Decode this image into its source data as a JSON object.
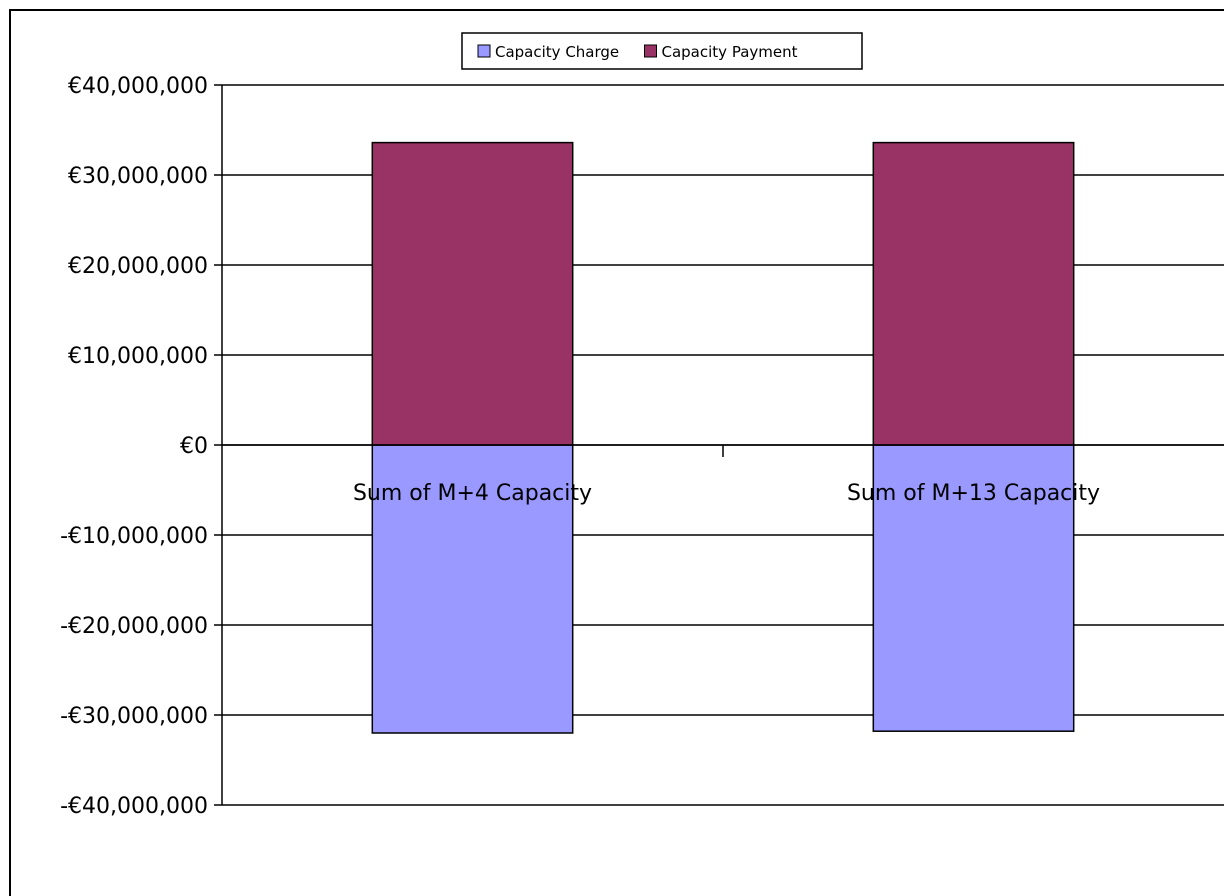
{
  "chart_data": {
    "type": "bar",
    "stacked": true,
    "categories": [
      "Sum of M+4 Capacity",
      "Sum of M+13 Capacity"
    ],
    "series": [
      {
        "name": "Capacity Charge",
        "color": "#9999ff",
        "values": [
          -32000000,
          -31800000
        ]
      },
      {
        "name": "Capacity Payment",
        "color": "#993366",
        "values": [
          33600000,
          33600000
        ]
      }
    ],
    "ylim": [
      -40000000,
      40000000
    ],
    "yticks": [
      {
        "value": 40000000,
        "label": "€40,000,000"
      },
      {
        "value": 30000000,
        "label": "€30,000,000"
      },
      {
        "value": 20000000,
        "label": "€20,000,000"
      },
      {
        "value": 10000000,
        "label": "€10,000,000"
      },
      {
        "value": 0,
        "label": "€0"
      },
      {
        "value": -10000000,
        "label": "-€10,000,000"
      },
      {
        "value": -20000000,
        "label": "-€20,000,000"
      },
      {
        "value": -30000000,
        "label": "-€30,000,000"
      },
      {
        "value": -40000000,
        "label": "-€40,000,000"
      }
    ],
    "grid": true,
    "legend_position": "top"
  }
}
